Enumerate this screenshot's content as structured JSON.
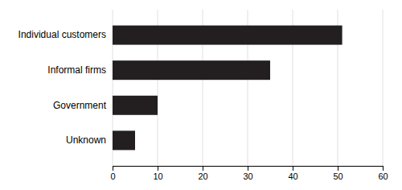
{
  "chart_data": {
    "type": "bar",
    "orientation": "horizontal",
    "categories": [
      "Individual customers",
      "Informal firms",
      "Government",
      "Unknown"
    ],
    "values": [
      51,
      35,
      10,
      5
    ],
    "color": "#231f20",
    "xlim": [
      0,
      60
    ],
    "xticks": [
      0,
      10,
      20,
      30,
      40,
      50,
      60
    ],
    "grid": true
  }
}
